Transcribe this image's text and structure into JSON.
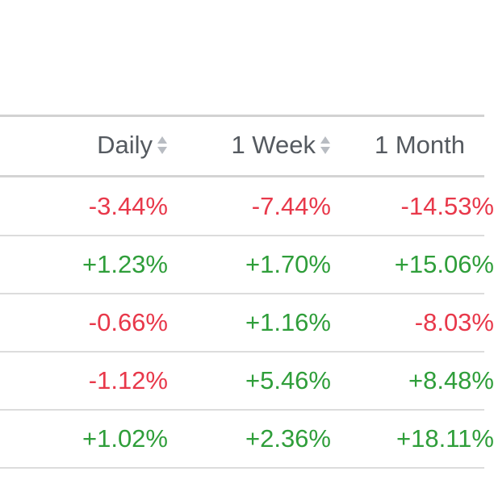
{
  "columns": {
    "daily": "Daily",
    "week": "1 Week",
    "month": "1 Month"
  },
  "rows": [
    {
      "daily": "-3.44%",
      "week": "-7.44%",
      "month": "-14.53%",
      "daily_dir": "neg",
      "week_dir": "neg",
      "month_dir": "neg"
    },
    {
      "daily": "+1.23%",
      "week": "+1.70%",
      "month": "+15.06%",
      "daily_dir": "pos",
      "week_dir": "pos",
      "month_dir": "pos"
    },
    {
      "daily": "-0.66%",
      "week": "+1.16%",
      "month": "-8.03%",
      "daily_dir": "neg",
      "week_dir": "pos",
      "month_dir": "neg"
    },
    {
      "daily": "-1.12%",
      "week": "+5.46%",
      "month": "+8.48%",
      "daily_dir": "neg",
      "week_dir": "pos",
      "month_dir": "pos"
    },
    {
      "daily": "+1.02%",
      "week": "+2.36%",
      "month": "+18.11%",
      "daily_dir": "pos",
      "week_dir": "pos",
      "month_dir": "pos"
    }
  ],
  "colors": {
    "negative": "#e8384a",
    "positive": "#2f9e3a",
    "header_text": "#555a60",
    "divider": "#dcdcdc"
  },
  "icons": {
    "sort": "sort-arrows-icon"
  }
}
